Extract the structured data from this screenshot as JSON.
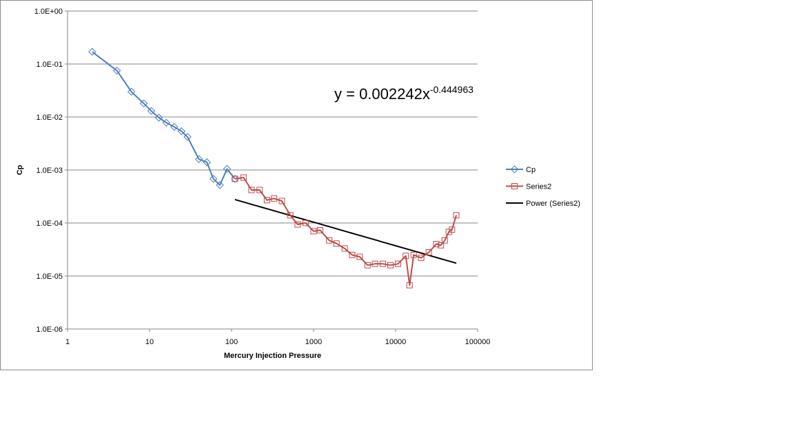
{
  "chart_data": {
    "type": "scatter",
    "title": "",
    "xlabel": "Mercury Injection Pressure",
    "ylabel": "Cp",
    "xscale": "log",
    "yscale": "log",
    "xlim": [
      1,
      100000
    ],
    "ylim": [
      1e-06,
      1
    ],
    "x_ticks": [
      "1",
      "10",
      "100",
      "1000",
      "10000",
      "100000"
    ],
    "y_ticks": [
      "1.0E-06",
      "1.0E-05",
      "1.0E-04",
      "1.0E-03",
      "1.0E-02",
      "1.0E-01",
      "1.0E+00"
    ],
    "grid": "horizontal major gridlines",
    "legend_position": "right",
    "series": [
      {
        "name": "Cp",
        "color": "#4a7ebb",
        "marker": "diamond",
        "points": [
          [
            2.0,
            0.17
          ],
          [
            4.0,
            0.075
          ],
          [
            6.0,
            0.03
          ],
          [
            8.5,
            0.018
          ],
          [
            10.5,
            0.013
          ],
          [
            13.0,
            0.0097
          ],
          [
            16.0,
            0.0078
          ],
          [
            20.0,
            0.0065
          ],
          [
            24.5,
            0.0054
          ],
          [
            29.0,
            0.0042
          ],
          [
            40.0,
            0.0016
          ],
          [
            50.0,
            0.0014
          ],
          [
            60.0,
            0.00068
          ],
          [
            72.0,
            0.00052
          ],
          [
            88.0,
            0.00105
          ],
          [
            110.0,
            0.00068
          ]
        ]
      },
      {
        "name": "Series2",
        "color": "#be4b48",
        "marker": "square",
        "points": [
          [
            110.0,
            0.00068
          ],
          [
            140.0,
            0.00072
          ],
          [
            175.0,
            0.00042
          ],
          [
            220.0,
            0.00042
          ],
          [
            270.0,
            0.00027
          ],
          [
            330.0,
            0.00029
          ],
          [
            410.0,
            0.00026
          ],
          [
            520.0,
            0.00014
          ],
          [
            640.0,
            9.4e-05
          ],
          [
            800.0,
            0.0001
          ],
          [
            1000.0,
            7e-05
          ],
          [
            1200.0,
            7.3e-05
          ],
          [
            1550.0,
            4.7e-05
          ],
          [
            1900.0,
            4.1e-05
          ],
          [
            2400.0,
            3.3e-05
          ],
          [
            2950.0,
            2.5e-05
          ],
          [
            3650.0,
            2.3e-05
          ],
          [
            4550.0,
            1.6e-05
          ],
          [
            5600.0,
            1.7e-05
          ],
          [
            7000.0,
            1.7e-05
          ],
          [
            8650.0,
            1.6e-05
          ],
          [
            10700.0,
            1.7e-05
          ],
          [
            13300.0,
            2.4e-05
          ],
          [
            14800.0,
            6.7e-06
          ],
          [
            16600.0,
            2.5e-05
          ],
          [
            20500.0,
            2.2e-05
          ],
          [
            25400.0,
            2.8e-05
          ],
          [
            31300.0,
            4e-05
          ],
          [
            35600.0,
            3.8e-05
          ],
          [
            39700.0,
            4.7e-05
          ],
          [
            44500.0,
            6.8e-05
          ],
          [
            48700.0,
            7.5e-05
          ],
          [
            54900.0,
            0.00014
          ]
        ]
      },
      {
        "name": "Power (Series2)",
        "color": "#000000",
        "type": "trendline",
        "equation": "y = 0.002242x-0.444963",
        "coefficient": 0.002242,
        "exponent": -0.444963,
        "x_range": [
          110,
          55000
        ]
      }
    ],
    "annotation": {
      "text_base": "y = 0.002242x",
      "text_exponent": "-0.444963"
    }
  }
}
